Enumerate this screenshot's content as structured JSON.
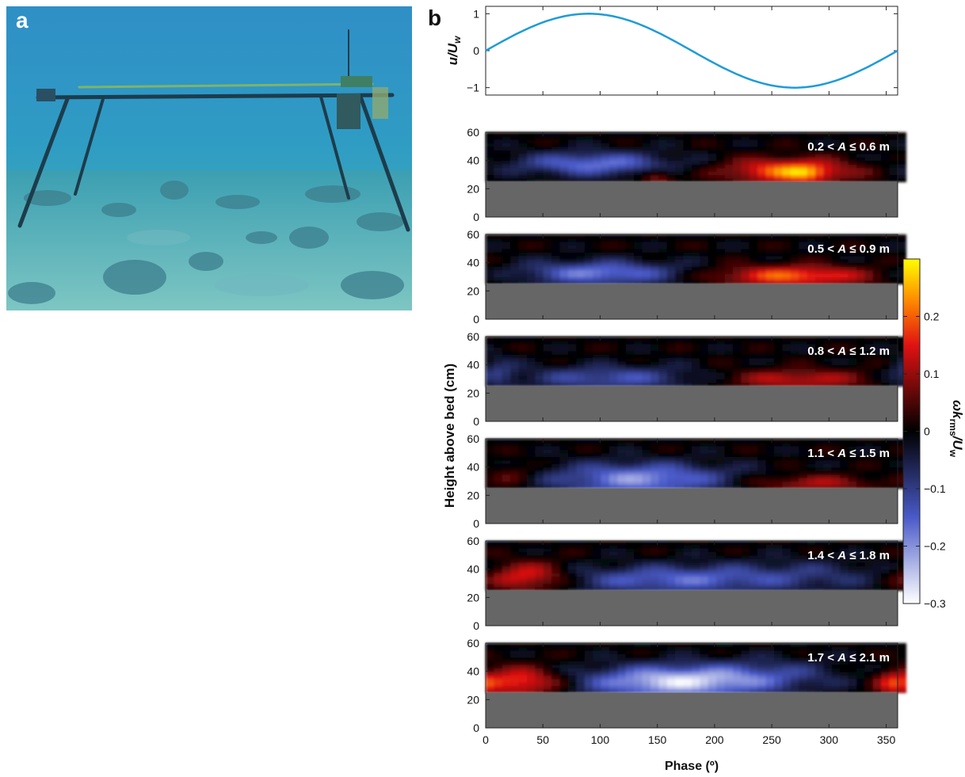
{
  "panel_a": {
    "label": "a"
  },
  "panel_b": {
    "label": "b",
    "colors": {
      "wave_line": "#1f9bd7",
      "bed_gray": "#666666"
    }
  },
  "chart_data": [
    {
      "type": "line",
      "panel": "b-top",
      "title": "",
      "xlabel": "",
      "ylabel_main": "u/U",
      "ylabel_sub": "w",
      "xlim": [
        0,
        360
      ],
      "ylim": [
        -1.2,
        1.2
      ],
      "yticks": [
        "1",
        "0",
        "−1"
      ],
      "ytick_values": [
        1,
        0,
        -1
      ],
      "x": [
        0,
        30,
        60,
        90,
        120,
        150,
        180,
        210,
        240,
        270,
        300,
        330,
        360
      ],
      "y": [
        0,
        0.5,
        0.87,
        1.0,
        0.87,
        0.5,
        0,
        -0.5,
        -0.87,
        -1.0,
        -0.87,
        -0.5,
        0
      ]
    },
    {
      "type": "heatmap",
      "panel": "b-stack",
      "xlabel": "Phase (º)",
      "ylabel": "Height above bed (cm)",
      "xlim": [
        0,
        360
      ],
      "xticks": [
        "0",
        "50",
        "100",
        "150",
        "200",
        "250",
        "300",
        "350"
      ],
      "xtick_values": [
        0,
        50,
        100,
        150,
        200,
        250,
        300,
        350
      ],
      "ylim": [
        0,
        60
      ],
      "yticks": [
        "60",
        "40",
        "20",
        "0"
      ],
      "ytick_values": [
        60,
        40,
        20,
        0
      ],
      "bed_height_cm": 25,
      "panels": [
        {
          "pre": "0.2 < ",
          "var": "A",
          "post": " ≤ 0.6 m",
          "blobs": [
            {
              "phase": 95,
              "h": 38,
              "amp": -0.17,
              "sx": 48,
              "sy": 6
            },
            {
              "phase": 265,
              "h": 33,
              "amp": 0.22,
              "sx": 38,
              "sy": 6
            },
            {
              "phase": 280,
              "h": 31,
              "amp": 0.08,
              "sx": 12,
              "sy": 4
            },
            {
              "phase": 150,
              "h": 29,
              "amp": 0.1,
              "sx": 10,
              "sy": 4
            }
          ]
        },
        {
          "pre": "0.5 < ",
          "var": "A",
          "post": " ≤ 0.9 m",
          "blobs": [
            {
              "phase": 100,
              "h": 33,
              "amp": -0.18,
              "sx": 50,
              "sy": 6
            },
            {
              "phase": 268,
              "h": 31,
              "amp": 0.2,
              "sx": 48,
              "sy": 5
            }
          ]
        },
        {
          "pre": "0.8 < ",
          "var": "A",
          "post": " ≤ 1.2 m",
          "blobs": [
            {
              "phase": 110,
              "h": 31,
              "amp": -0.13,
              "sx": 55,
              "sy": 6
            },
            {
              "phase": 272,
              "h": 30,
              "amp": 0.13,
              "sx": 45,
              "sy": 5
            },
            {
              "phase": 10,
              "h": 35,
              "amp": -0.08,
              "sx": 12,
              "sy": 8
            }
          ]
        },
        {
          "pre": "1.1 < ",
          "var": "A",
          "post": " ≤ 1.5 m",
          "blobs": [
            {
              "phase": 135,
              "h": 32,
              "amp": -0.2,
              "sx": 55,
              "sy": 8
            },
            {
              "phase": 285,
              "h": 29,
              "amp": 0.11,
              "sx": 40,
              "sy": 4
            },
            {
              "phase": 25,
              "h": 35,
              "amp": 0.06,
              "sx": 15,
              "sy": 6
            }
          ]
        },
        {
          "pre": "1.4 < ",
          "var": "A",
          "post": " ≤ 1.8 m",
          "blobs": [
            {
              "phase": 35,
              "h": 35,
              "amp": 0.18,
              "sx": 25,
              "sy": 7
            },
            {
              "phase": 160,
              "h": 33,
              "amp": -0.15,
              "sx": 65,
              "sy": 7
            },
            {
              "phase": 280,
              "h": 36,
              "amp": -0.07,
              "sx": 60,
              "sy": 8
            }
          ]
        },
        {
          "pre": "1.7 < ",
          "var": "A",
          "post": " ≤ 2.1 m",
          "blobs": [
            {
              "phase": 30,
              "h": 33,
              "amp": 0.19,
              "sx": 25,
              "sy": 7
            },
            {
              "phase": 165,
              "h": 33,
              "amp": -0.26,
              "sx": 55,
              "sy": 8
            },
            {
              "phase": 355,
              "h": 32,
              "amp": 0.1,
              "sx": 10,
              "sy": 6
            },
            {
              "phase": 250,
              "h": 38,
              "amp": -0.08,
              "sx": 45,
              "sy": 8
            }
          ]
        }
      ]
    },
    {
      "type": "colorbar",
      "panel": "b-colorbar",
      "label_main": "ωk",
      "label_sub": "rms",
      "label_tail": "/U",
      "label_sub2": "w",
      "vlim": [
        -0.3,
        0.3
      ],
      "ticks": [
        "0.2",
        "0.1",
        "0",
        "−0.1",
        "−0.2",
        "−0.3"
      ],
      "tick_values": [
        0.2,
        0.1,
        0,
        -0.1,
        -0.2,
        -0.3
      ]
    }
  ]
}
